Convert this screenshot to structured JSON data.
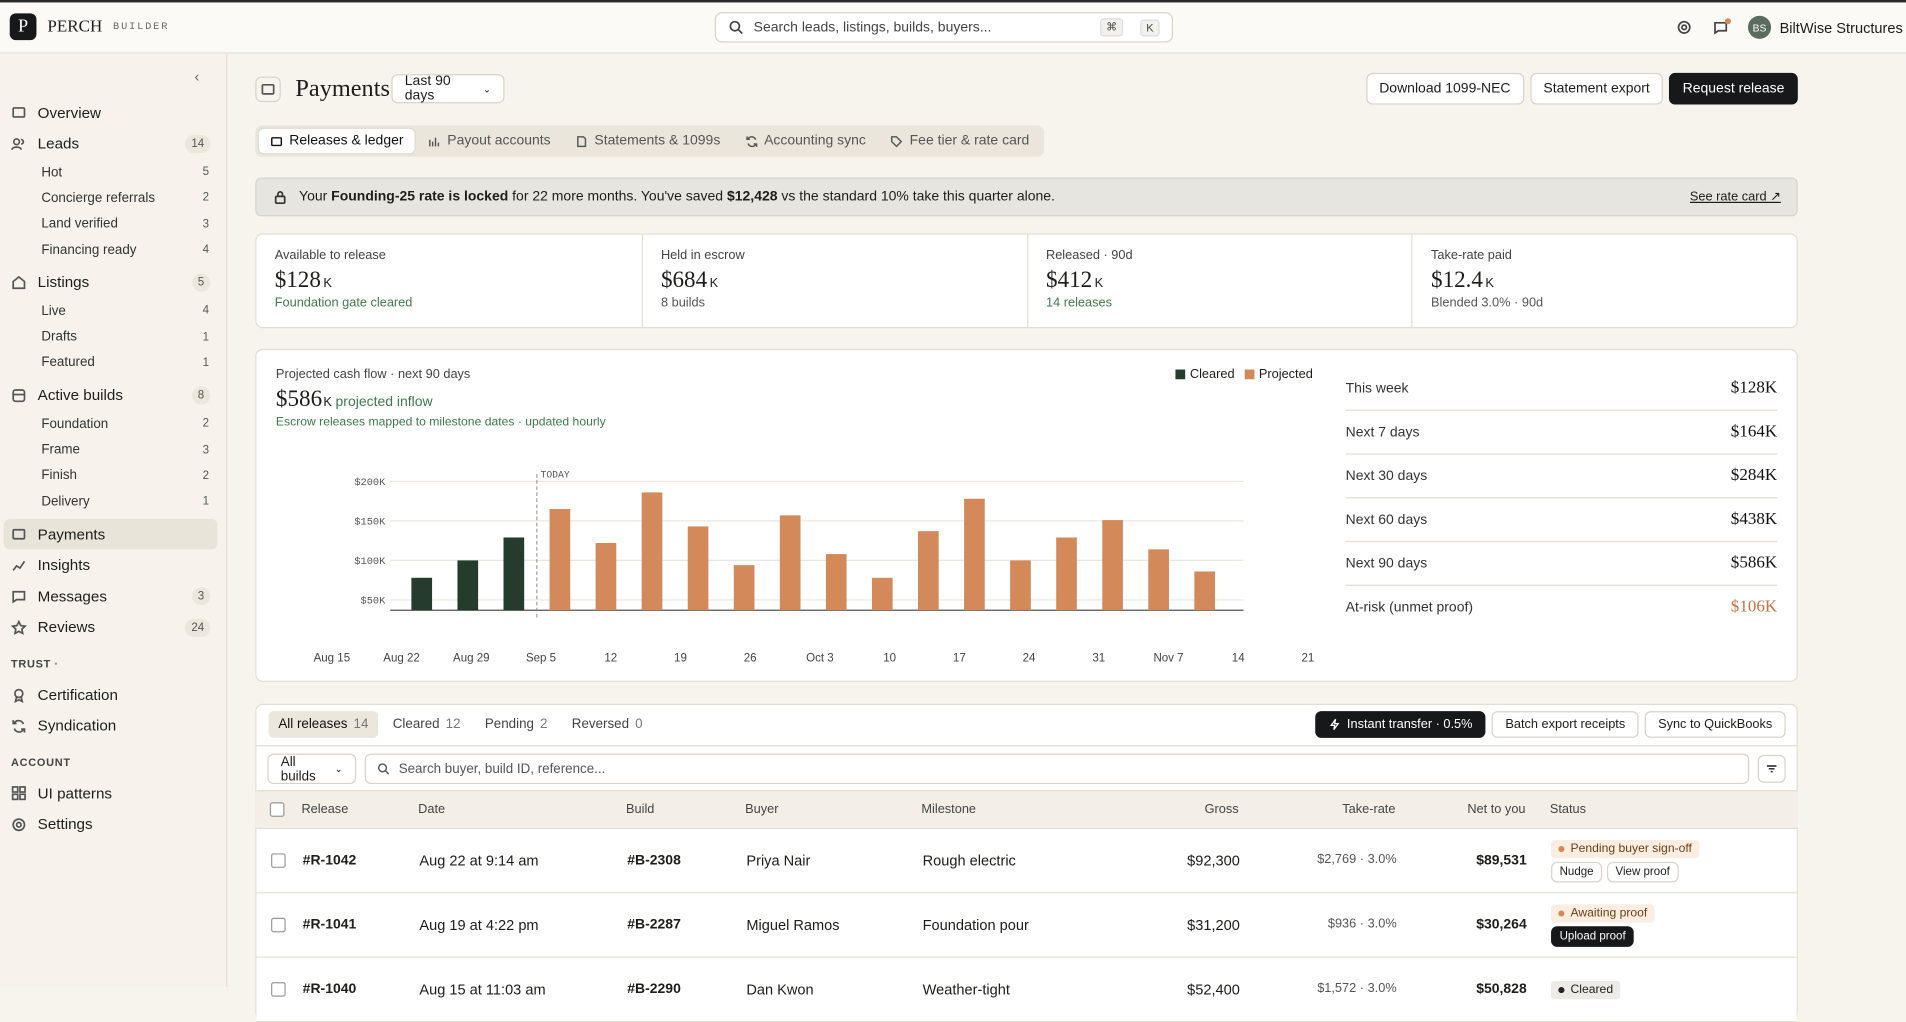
{
  "topbar": {
    "logo": "P",
    "brand": "PERCH",
    "brand_sub": "BUILDER",
    "search": "Search leads, listings, builds, buyers...",
    "keys": [
      "⌘",
      "K"
    ],
    "initials": "BS",
    "account": "BiltWise Structures"
  },
  "sidebar": {
    "nav": [
      {
        "label": "Overview"
      },
      {
        "label": "Leads",
        "count": 14,
        "children": [
          {
            "label": "Hot",
            "count": 5
          },
          {
            "label": "Concierge referrals",
            "count": 2
          },
          {
            "label": "Land verified",
            "count": 3
          },
          {
            "label": "Financing ready",
            "count": 4
          }
        ]
      },
      {
        "label": "Listings",
        "count": 5,
        "children": [
          {
            "label": "Live",
            "count": 4
          },
          {
            "label": "Drafts",
            "count": 1
          },
          {
            "label": "Featured",
            "count": 1
          }
        ]
      },
      {
        "label": "Active builds",
        "count": 8,
        "children": [
          {
            "label": "Foundation",
            "count": 2
          },
          {
            "label": "Frame",
            "count": 3
          },
          {
            "label": "Finish",
            "count": 2
          },
          {
            "label": "Delivery",
            "count": 1
          }
        ]
      },
      {
        "label": "Payments",
        "active": true
      },
      {
        "label": "Insights"
      },
      {
        "label": "Messages",
        "count": 3
      },
      {
        "label": "Reviews",
        "count": 24
      }
    ],
    "sections": [
      {
        "title": "TRUST",
        "items": [
          {
            "label": "Certification"
          },
          {
            "label": "Syndication"
          }
        ]
      },
      {
        "title": "ACCOUNT",
        "items": [
          {
            "label": "UI patterns"
          },
          {
            "label": "Settings"
          }
        ]
      }
    ]
  },
  "header": {
    "title": "Payments",
    "range": "Last 90 days",
    "actions": [
      "Download 1099-NEC",
      "Statement export",
      "Request release"
    ]
  },
  "tabs": [
    "Releases & ledger",
    "Payout accounts",
    "Statements & 1099s",
    "Accounting sync",
    "Fee tier & rate card"
  ],
  "banner": {
    "parts": [
      "Your ",
      "Founding-25 rate is locked",
      " for 22 more months. You've saved ",
      "$12,428",
      " vs the standard 10% take this quarter alone."
    ],
    "link": "See rate card ↗"
  },
  "stats": [
    {
      "label": "Available to release",
      "value": "$128",
      "unit": "K",
      "sub": "Foundation gate cleared",
      "tone": "green"
    },
    {
      "label": "Held in escrow",
      "value": "$684",
      "unit": "K",
      "sub": "8 builds",
      "tone": "gray"
    },
    {
      "label": "Released · 90d",
      "value": "$412",
      "unit": "K",
      "sub": "14 releases",
      "tone": "green"
    },
    {
      "label": "Take-rate paid",
      "value": "$12.4",
      "unit": "K",
      "sub": "Blended 3.0% · 90d",
      "tone": "gray"
    }
  ],
  "chart_data": {
    "type": "bar",
    "title": "Projected cash flow · next 90 days",
    "headline": {
      "value": "$586",
      "unit": "K",
      "label": "projected inflow"
    },
    "subtitle": "Escrow releases mapped to milestone dates · updated hourly",
    "annotation": "TODAY",
    "categories": [
      null,
      null,
      null,
      null,
      null,
      null,
      null,
      null,
      null,
      null,
      null,
      null,
      null,
      null,
      null,
      null,
      null,
      null
    ],
    "x_labels": [
      "Aug 15",
      "Aug 22",
      "Aug 29",
      "Sep 5",
      "12",
      "19",
      "26",
      "Oct 3",
      "10",
      "17",
      "24",
      "31",
      "Nov 7",
      "14",
      "21"
    ],
    "series": [
      {
        "name": "Cleared",
        "color": "#243b2e",
        "values": [
          78,
          100,
          129,
          null,
          null,
          null,
          null,
          null,
          null,
          null,
          null,
          null,
          null,
          null,
          null,
          null,
          null,
          null
        ]
      },
      {
        "name": "Projected",
        "color": "#d4895a",
        "values": [
          null,
          null,
          null,
          165,
          122,
          186,
          143,
          94,
          157,
          108,
          78,
          137,
          178,
          100,
          129,
          151,
          114,
          86
        ]
      }
    ],
    "ylim": [
      37,
      200
    ],
    "yticks": [
      {
        "value": 50,
        "label": "$50K"
      },
      {
        "value": 100,
        "label": "$100K"
      },
      {
        "value": 150,
        "label": "$150K"
      },
      {
        "value": 200,
        "label": "$200K"
      }
    ],
    "grid": true,
    "legend": "top-right"
  },
  "summary": [
    {
      "label": "This week",
      "value": "$128K"
    },
    {
      "label": "Next 7 days",
      "value": "$164K"
    },
    {
      "label": "Next 30 days",
      "value": "$284K"
    },
    {
      "label": "Next 60 days",
      "value": "$438K"
    },
    {
      "label": "Next 90 days",
      "value": "$586K"
    },
    {
      "label": "At-risk (unmet proof)",
      "value": "$106K",
      "tone": "orange"
    }
  ],
  "releases": {
    "filters": [
      {
        "label": "All releases",
        "count": 14,
        "active": true
      },
      {
        "label": "Cleared",
        "count": 12
      },
      {
        "label": "Pending",
        "count": 2
      },
      {
        "label": "Reversed",
        "count": 0
      }
    ],
    "buttons": [
      "Instant transfer · 0.5%",
      "Batch export receipts",
      "Sync to QuickBooks"
    ],
    "build_filter": "All builds",
    "search": "Search buyer, build ID, reference...",
    "columns": [
      "Release",
      "Date",
      "Build",
      "Buyer",
      "Milestone",
      "Gross",
      "Take-rate",
      "Net to you",
      "Status"
    ],
    "rows": [
      {
        "cells": [
          "#R-1042",
          "Aug 22 at 9:14 am",
          "#B-2308",
          "Priya Nair",
          "Rough electric",
          "$92,300",
          "$2,769 · 3.0%",
          "$89,531"
        ],
        "status": "Pending buyer sign-off",
        "tone": "pending",
        "actions": [
          "Nudge",
          "View proof"
        ]
      },
      {
        "cells": [
          "#R-1041",
          "Aug 19 at 4:22 pm",
          "#B-2287",
          "Miguel Ramos",
          "Foundation pour",
          "$31,200",
          "$936 · 3.0%",
          "$30,264"
        ],
        "status": "Awaiting proof",
        "tone": "pending",
        "actions": [
          "Upload proof"
        ],
        "primary": true
      },
      {
        "cells": [
          "#R-1040",
          "Aug 15 at 11:03 am",
          "#B-2290",
          "Dan Kwon",
          "Weather-tight",
          "$52,400",
          "$1,572 · 3.0%",
          "$50,828"
        ],
        "status": "Cleared",
        "tone": "cleared",
        "actions": []
      }
    ]
  }
}
